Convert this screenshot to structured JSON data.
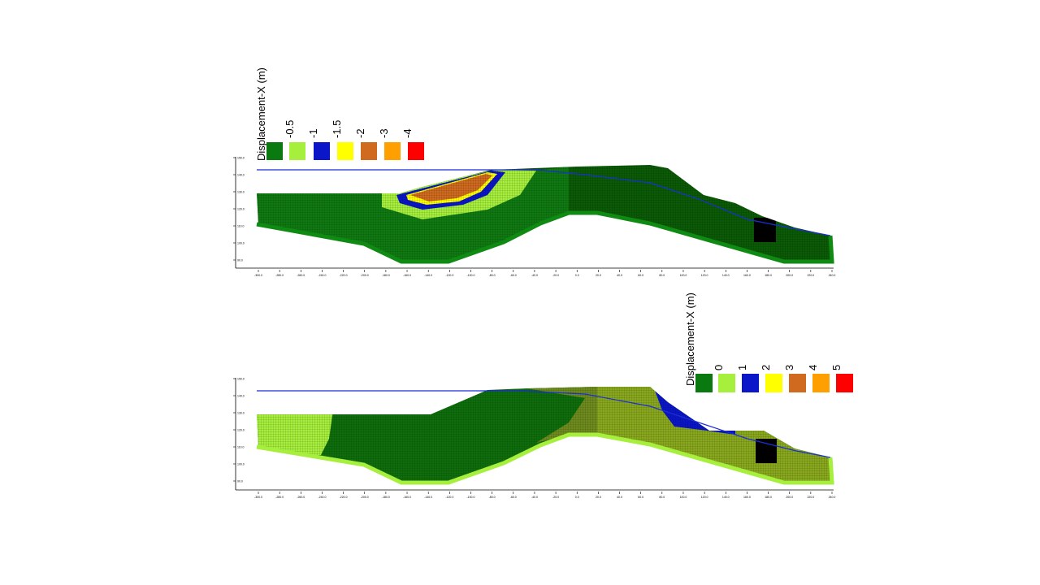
{
  "panels": [
    {
      "legend": {
        "title": "Displacement-X (m)",
        "items": [
          {
            "label": "-0.5",
            "color": "#0a7a10"
          },
          {
            "label": "-1",
            "color": "#a6ef3c"
          },
          {
            "label": "-1.5",
            "color": "#0b16c8"
          },
          {
            "label": "-2",
            "color": "#ffff00"
          },
          {
            "label": "-3",
            "color": "#cf6a1f"
          },
          {
            "label": "-4",
            "color": "#ffa000"
          },
          {
            "label": "",
            "color": "#ff0000"
          }
        ]
      },
      "y_ticks": [
        "150.0",
        "140.0",
        "130.0",
        "120.0",
        "110.0",
        "100.0",
        "90.0"
      ],
      "x_ticks": [
        "-300.0",
        "-280.0",
        "-260.0",
        "-240.0",
        "-220.0",
        "-200.0",
        "-180.0",
        "-160.0",
        "-140.0",
        "-120.0",
        "-100.0",
        "-80.0",
        "-60.0",
        "-40.0",
        "-20.0",
        "0.0",
        "20.0",
        "40.0",
        "60.0",
        "80.0",
        "100.0",
        "120.0",
        "140.0",
        "160.0",
        "180.0",
        "200.0",
        "220.0",
        "240.0"
      ]
    },
    {
      "legend": {
        "title": "Displacement-X (m)",
        "items": [
          {
            "label": "0",
            "color": "#0a7a10"
          },
          {
            "label": "1",
            "color": "#a6ef3c"
          },
          {
            "label": "2",
            "color": "#0b16c8"
          },
          {
            "label": "3",
            "color": "#ffff00"
          },
          {
            "label": "4",
            "color": "#cf6a1f"
          },
          {
            "label": "5",
            "color": "#ffa000"
          },
          {
            "label": "",
            "color": "#ff0000"
          }
        ]
      },
      "y_ticks": [
        "150.0",
        "140.0",
        "130.0",
        "120.0",
        "110.0",
        "100.0",
        "90.0"
      ],
      "x_ticks": [
        "-300.0",
        "-280.0",
        "-260.0",
        "-240.0",
        "-220.0",
        "-200.0",
        "-180.0",
        "-160.0",
        "-140.0",
        "-120.0",
        "-100.0",
        "-80.0",
        "-60.0",
        "-40.0",
        "-20.0",
        "0.0",
        "20.0",
        "40.0",
        "60.0",
        "80.0",
        "100.0",
        "120.0",
        "140.0",
        "160.0",
        "180.0",
        "200.0",
        "220.0",
        "240.0"
      ]
    }
  ],
  "colors": {
    "dark_green": "#0a5a06",
    "mid_green": "#0f8a12",
    "light_green": "#a6ef3c",
    "olive": "#6e8c1e",
    "blue": "#0b16c8",
    "yellow": "#ffff00",
    "brown": "#cf6a1f",
    "orange": "#ffa000",
    "red": "#ff0000",
    "black": "#000000",
    "water_line": "#1a2fd8"
  }
}
